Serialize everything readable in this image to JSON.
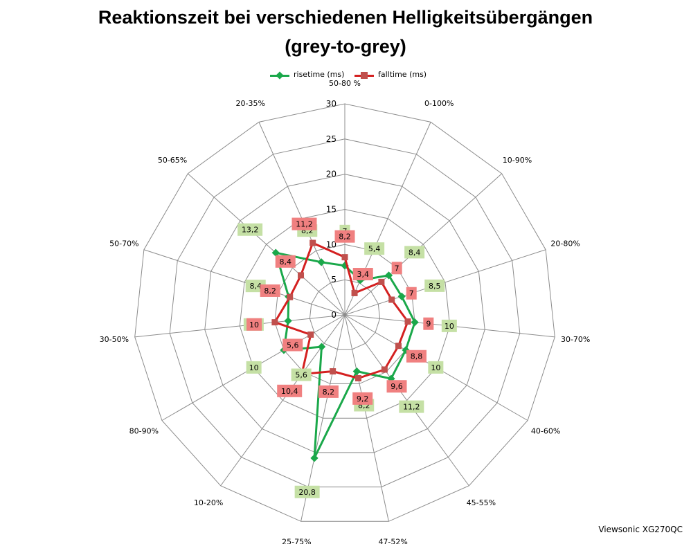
{
  "title_line1": "Reaktionszeit bei verschiedenen Helligkeitsübergängen",
  "title_line2": "(grey-to-grey)",
  "watermark": "Viewsonic XG270QC",
  "chart_data": {
    "type": "radar",
    "categories": [
      "50-80 %",
      "0-100%",
      "10-90%",
      "20-80%",
      "30-70%",
      "40-60%",
      "45-55%",
      "47-52%",
      "25-75%",
      "10-20%",
      "80-90%",
      "30-50%",
      "50-70%",
      "50-65%",
      "20-35%"
    ],
    "rlim": [
      0,
      30
    ],
    "rticks": [
      0,
      5,
      10,
      15,
      20,
      25,
      30
    ],
    "legend_position": "top",
    "series": [
      {
        "name": "risetime (ms)",
        "color": "#1aa84a",
        "label_bg": "#c5e0a5",
        "values": [
          7,
          5.4,
          8.4,
          8.5,
          10,
          10,
          11.2,
          8.2,
          20.8,
          5.6,
          10,
          8.1,
          8.4,
          13.2,
          8.2
        ],
        "labels": [
          "7",
          "5,4",
          "8,4",
          "8,5",
          "10",
          "10",
          "11,2",
          "8,2",
          "20,8",
          "5,6",
          "10",
          "8,1",
          "8,4",
          "13,2",
          "8,2"
        ]
      },
      {
        "name": "falltime (ms)",
        "color": "#d42020",
        "label_bg": "#f08080",
        "values": [
          8.2,
          3.4,
          7,
          7,
          9,
          8.8,
          9.6,
          9.2,
          8.2,
          10.4,
          5.6,
          10,
          8.2,
          8.4,
          11.2
        ],
        "labels": [
          "8,2",
          "3,4",
          "7",
          "7",
          "9",
          "8,8",
          "9,6",
          "9,2",
          "8,2",
          "10,4",
          "5,6",
          "10",
          "8,2",
          "8,4",
          "11,2"
        ]
      }
    ]
  }
}
